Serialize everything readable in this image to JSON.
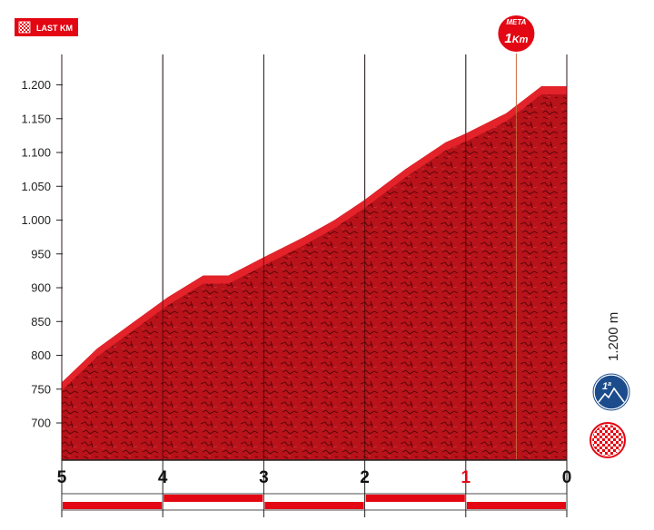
{
  "badge": {
    "label": "LAST KM"
  },
  "finish_marker": {
    "top_label": "META",
    "main_label": "1",
    "unit_label": "Km",
    "distance_to_go": 0.5
  },
  "summit_info": {
    "altitude_label": "1.200 m",
    "category_number": "1",
    "category_suffix": "a"
  },
  "colors": {
    "profile": "#c0141a",
    "profile_edge": "#e3222a",
    "profile_dark": "#5a0606",
    "badge": "#e30613",
    "km_red": "#e30613",
    "marker_line": "#c86a3c",
    "climb_blue": "#1c4c8c"
  },
  "chart_data": {
    "type": "area",
    "title": "",
    "xlabel": "",
    "ylabel": "",
    "x_reversed": true,
    "xlim": [
      5,
      0
    ],
    "ylim": [
      645,
      1245
    ],
    "grid": "vertical",
    "x_ticks": [
      5,
      4,
      3,
      2,
      1,
      0
    ],
    "x_tick_labels": [
      "5",
      "4",
      "3",
      "2",
      "1",
      "0"
    ],
    "x_tick_highlight": "1",
    "y_ticks": [
      700,
      750,
      800,
      850,
      900,
      950,
      1000,
      1050,
      1100,
      1150,
      1200
    ],
    "y_tick_labels": [
      "700",
      "750",
      "800",
      "850",
      "900",
      "950",
      "1.000",
      "1.050",
      "1.100",
      "1.150",
      "1.200"
    ],
    "series": [
      {
        "x": [
          5.0,
          4.65,
          4.3,
          3.95,
          3.6,
          3.35,
          3.0,
          2.6,
          2.3,
          2.0,
          1.6,
          1.2,
          1.0,
          0.6,
          0.25,
          0.0
        ],
        "y": [
          760,
          810,
          848,
          886,
          918,
          918,
          945,
          975,
          1000,
          1030,
          1075,
          1115,
          1128,
          1158,
          1198,
          1198
        ]
      }
    ],
    "km_strip": [
      "white",
      "red",
      "white",
      "red",
      "white"
    ]
  }
}
